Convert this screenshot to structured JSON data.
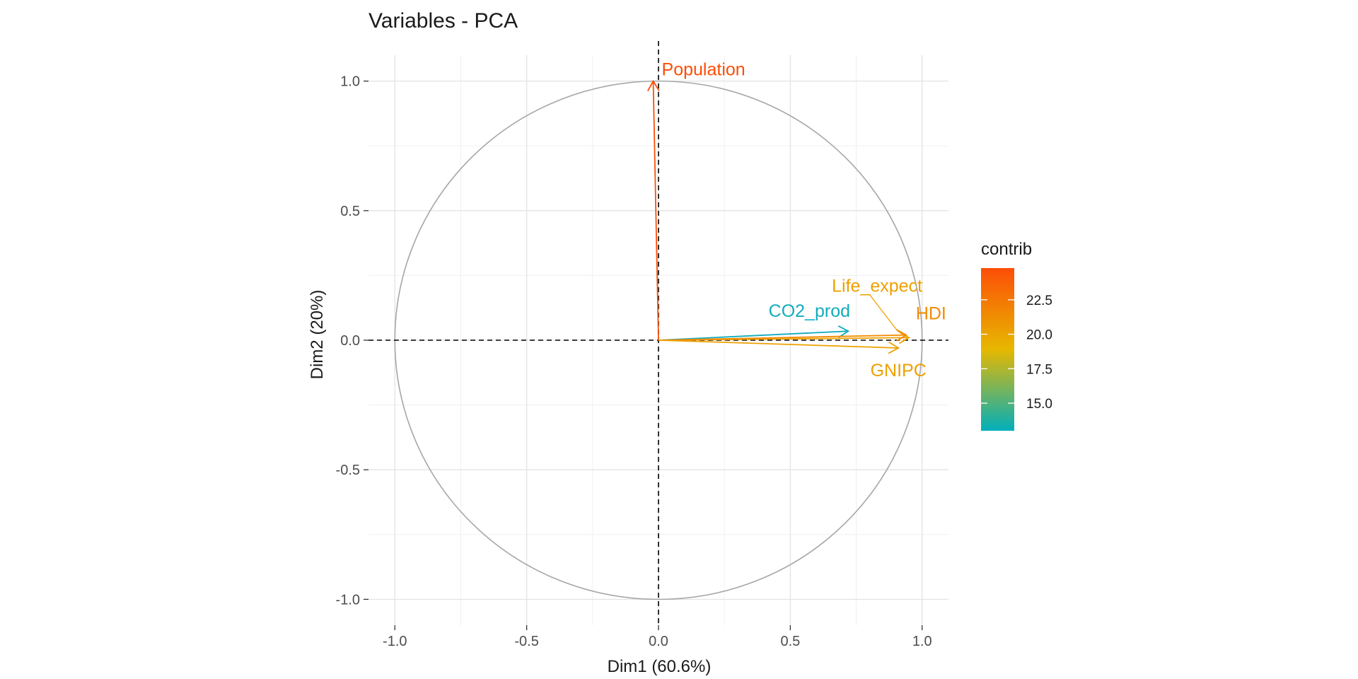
{
  "chart_data": {
    "type": "scatter",
    "title": "Variables - PCA",
    "xlabel": "Dim1 (60.6%)",
    "ylabel": "Dim2 (20%)",
    "xlim": [
      -1.1,
      1.1
    ],
    "ylim": [
      -1.1,
      1.1
    ],
    "xticks": [
      -1.0,
      -0.5,
      0.0,
      0.5,
      1.0
    ],
    "yticks": [
      -1.0,
      -0.5,
      0.0,
      0.5,
      1.0
    ],
    "xtick_labels": [
      "-1.0",
      "-0.5",
      "0.0",
      "0.5",
      "1.0"
    ],
    "ytick_labels": [
      "-1.0",
      "-0.5",
      "0.0",
      "0.5",
      "1.0"
    ],
    "grid": true,
    "correlation_circle": true,
    "reference_lines": [
      0,
      0
    ],
    "variables": [
      {
        "name": "Population",
        "x": -0.02,
        "y": 1.0,
        "contrib": 24.8,
        "color": "#FC4E07"
      },
      {
        "name": "Life_expect",
        "x": 0.95,
        "y": 0.01,
        "contrib": 19.8,
        "color": "#EDA000"
      },
      {
        "name": "CO2_prod",
        "x": 0.72,
        "y": 0.035,
        "contrib": 13.0,
        "color": "#12ACBD"
      },
      {
        "name": "HDI",
        "x": 0.94,
        "y": 0.02,
        "contrib": 21.6,
        "color": "#F28A00"
      },
      {
        "name": "GNIPC",
        "x": 0.91,
        "y": -0.03,
        "contrib": 19.2,
        "color": "#EDA000"
      }
    ],
    "legend": {
      "title": "contrib",
      "placement": "right",
      "range": [
        13.0,
        24.8
      ],
      "ticks": [
        15.0,
        17.5,
        20.0,
        22.5
      ],
      "tick_labels": [
        "15.0",
        "17.5",
        "20.0",
        "22.5"
      ],
      "gradient": [
        "#00AFBB",
        "#E7B800",
        "#FC4E07"
      ]
    }
  }
}
